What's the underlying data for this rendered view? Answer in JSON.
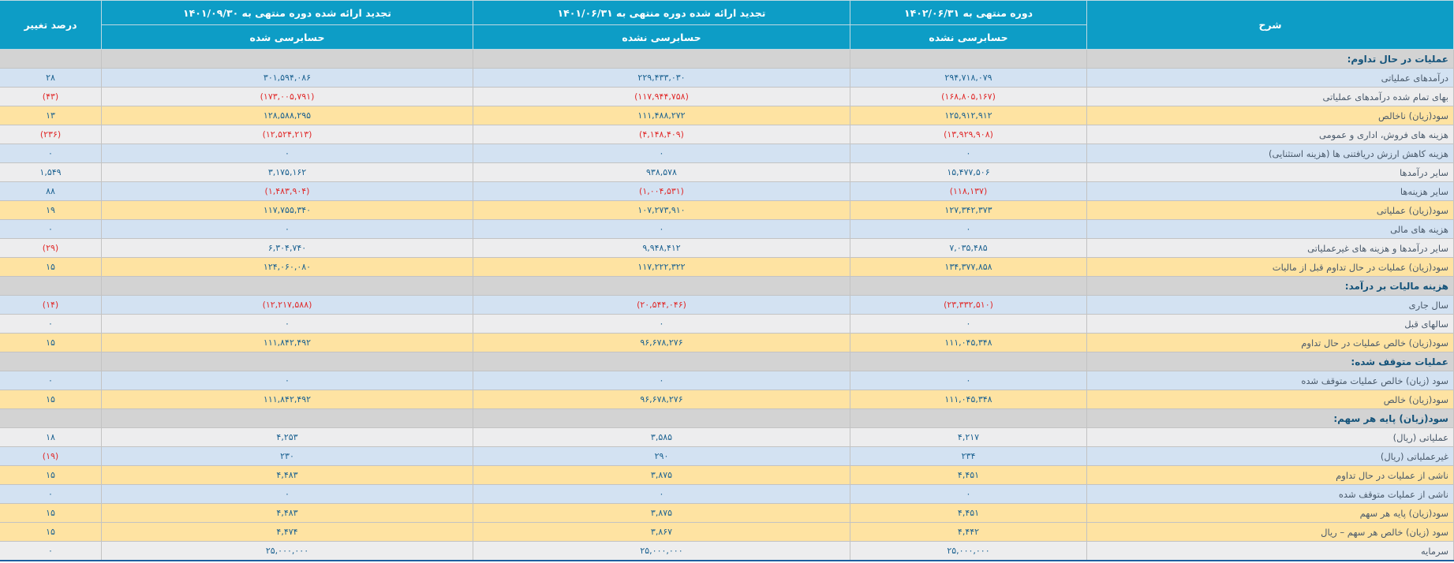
{
  "colors": {
    "header_bg": "#0d9dc6",
    "section_row_bg": "#d3d3d3",
    "row_blue_bg": "#d3e2f2",
    "row_plain_bg": "#ededee",
    "row_yellow_bg": "#fee3a2",
    "number_text": "#1c6291",
    "negative_text": "#e02b2b",
    "label_text": "#4a5a6b",
    "section_text": "#14537a",
    "bottom_border": "#1d5fa0"
  },
  "table": {
    "headers": {
      "description": "شرح",
      "period1": {
        "title": "دوره منتهی به ۱۴۰۲/۰۶/۳۱",
        "status": "حسابرسی نشده"
      },
      "period2": {
        "title": "تجدید ارائه شده دوره منتهی به ۱۴۰۱/۰۶/۳۱",
        "status": "حسابرسی نشده"
      },
      "period3": {
        "title": "تجدید ارائه شده دوره منتهی به ۱۴۰۱/۰۹/۳۰",
        "status": "حسابرسی شده"
      },
      "change": "درصد تغییر"
    },
    "rows": [
      {
        "type": "section",
        "style": "section",
        "label": "عملیات در حال تداوم:",
        "v1": "",
        "v2": "",
        "v3": "",
        "pct": ""
      },
      {
        "type": "data",
        "style": "blue",
        "label": "درآمدهای عملیاتی",
        "v1": "۲۹۴,۷۱۸,۰۷۹",
        "v2": "۲۲۹,۴۳۳,۰۳۰",
        "v3": "۳۰۱,۵۹۴,۰۸۶",
        "pct": "۲۸"
      },
      {
        "type": "data",
        "style": "plain",
        "label": "بهای تمام شده درآمدهای عملیاتی",
        "v1": "(۱۶۸,۸۰۵,۱۶۷)",
        "v2": "(۱۱۷,۹۴۴,۷۵۸)",
        "v3": "(۱۷۳,۰۰۵,۷۹۱)",
        "pct": "(۴۳)"
      },
      {
        "type": "data",
        "style": "yellow",
        "label": "سود(زیان) ناخالص",
        "v1": "۱۲۵,۹۱۲,۹۱۲",
        "v2": "۱۱۱,۴۸۸,۲۷۲",
        "v3": "۱۲۸,۵۸۸,۲۹۵",
        "pct": "۱۳"
      },
      {
        "type": "data",
        "style": "plain",
        "label": "هزینه های فروش، اداری و عمومی",
        "v1": "(۱۳,۹۲۹,۹۰۸)",
        "v2": "(۴,۱۴۸,۴۰۹)",
        "v3": "(۱۲,۵۲۴,۲۱۳)",
        "pct": "(۲۳۶)"
      },
      {
        "type": "data",
        "style": "blue",
        "label": "هزینه کاهش ارزش دریافتنی ها (هزینه استثنایی)",
        "v1": "۰",
        "v2": "۰",
        "v3": "۰",
        "pct": "۰"
      },
      {
        "type": "data",
        "style": "plain",
        "label": "سایر درآمدها",
        "v1": "۱۵,۴۷۷,۵۰۶",
        "v2": "۹۳۸,۵۷۸",
        "v3": "۳,۱۷۵,۱۶۲",
        "pct": "۱,۵۴۹"
      },
      {
        "type": "data",
        "style": "blue",
        "label": "سایر هزینه‌ها",
        "v1": "(۱۱۸,۱۳۷)",
        "v2": "(۱,۰۰۴,۵۳۱)",
        "v3": "(۱,۴۸۳,۹۰۴)",
        "pct": "۸۸"
      },
      {
        "type": "data",
        "style": "yellow",
        "label": "سود(زیان) عملیاتی",
        "v1": "۱۲۷,۳۴۲,۳۷۳",
        "v2": "۱۰۷,۲۷۳,۹۱۰",
        "v3": "۱۱۷,۷۵۵,۳۴۰",
        "pct": "۱۹"
      },
      {
        "type": "data",
        "style": "blue",
        "label": "هزینه های مالی",
        "v1": "۰",
        "v2": "۰",
        "v3": "۰",
        "pct": "۰"
      },
      {
        "type": "data",
        "style": "plain",
        "label": "سایر درآمدها و هزینه های غیرعملیاتی",
        "v1": "۷,۰۳۵,۴۸۵",
        "v2": "۹,۹۴۸,۴۱۲",
        "v3": "۶,۳۰۴,۷۴۰",
        "pct": "(۲۹)"
      },
      {
        "type": "data",
        "style": "yellow",
        "label": "سود(زیان) عملیات در حال تداوم قبل از مالیات",
        "v1": "۱۳۴,۳۷۷,۸۵۸",
        "v2": "۱۱۷,۲۲۲,۳۲۲",
        "v3": "۱۲۴,۰۶۰,۰۸۰",
        "pct": "۱۵"
      },
      {
        "type": "section",
        "style": "section",
        "label": "هزینه مالیات بر درآمد:",
        "v1": "",
        "v2": "",
        "v3": "",
        "pct": ""
      },
      {
        "type": "data",
        "style": "blue",
        "label": "سال جاری",
        "v1": "(۲۳,۳۳۲,۵۱۰)",
        "v2": "(۲۰,۵۴۴,۰۴۶)",
        "v3": "(۱۲,۲۱۷,۵۸۸)",
        "pct": "(۱۴)"
      },
      {
        "type": "data",
        "style": "plain",
        "label": "سالهای قبل",
        "v1": "۰",
        "v2": "۰",
        "v3": "۰",
        "pct": "۰"
      },
      {
        "type": "data",
        "style": "yellow",
        "label": "سود(زیان) خالص عملیات در حال تداوم",
        "v1": "۱۱۱,۰۴۵,۳۴۸",
        "v2": "۹۶,۶۷۸,۲۷۶",
        "v3": "۱۱۱,۸۴۲,۴۹۲",
        "pct": "۱۵"
      },
      {
        "type": "section",
        "style": "section",
        "label": "عملیات متوقف شده:",
        "v1": "",
        "v2": "",
        "v3": "",
        "pct": ""
      },
      {
        "type": "data",
        "style": "blue",
        "label": "سود (زیان) خالص عملیات متوقف شده",
        "v1": "۰",
        "v2": "۰",
        "v3": "۰",
        "pct": "۰"
      },
      {
        "type": "data",
        "style": "yellow",
        "label": "سود(زیان) خالص",
        "v1": "۱۱۱,۰۴۵,۳۴۸",
        "v2": "۹۶,۶۷۸,۲۷۶",
        "v3": "۱۱۱,۸۴۲,۴۹۲",
        "pct": "۱۵"
      },
      {
        "type": "section",
        "style": "section",
        "label": "سود(زیان) پایه هر سهم:",
        "v1": "",
        "v2": "",
        "v3": "",
        "pct": ""
      },
      {
        "type": "data",
        "style": "plain",
        "label": "عملیاتی (ریال)",
        "v1": "۴,۲۱۷",
        "v2": "۳,۵۸۵",
        "v3": "۴,۲۵۳",
        "pct": "۱۸"
      },
      {
        "type": "data",
        "style": "blue",
        "label": "غیرعملیاتی (ریال)",
        "v1": "۲۳۴",
        "v2": "۲۹۰",
        "v3": "۲۳۰",
        "pct": "(۱۹)"
      },
      {
        "type": "data",
        "style": "yellow",
        "label": "ناشی از عملیات در حال تداوم",
        "v1": "۴,۴۵۱",
        "v2": "۳,۸۷۵",
        "v3": "۴,۴۸۳",
        "pct": "۱۵"
      },
      {
        "type": "data",
        "style": "blue",
        "label": "ناشی از عملیات متوقف شده",
        "v1": "۰",
        "v2": "۰",
        "v3": "۰",
        "pct": "۰"
      },
      {
        "type": "data",
        "style": "yellow",
        "label": "سود(زیان) پایه هر سهم",
        "v1": "۴,۴۵۱",
        "v2": "۳,۸۷۵",
        "v3": "۴,۴۸۳",
        "pct": "۱۵"
      },
      {
        "type": "data",
        "style": "yellow",
        "label": "سود (زیان) خالص هر سهم – ریال",
        "v1": "۴,۴۴۲",
        "v2": "۳,۸۶۷",
        "v3": "۴,۴۷۴",
        "pct": "۱۵"
      },
      {
        "type": "data",
        "style": "plain",
        "label": "سرمایه",
        "v1": "۲۵,۰۰۰,۰۰۰",
        "v2": "۲۵,۰۰۰,۰۰۰",
        "v3": "۲۵,۰۰۰,۰۰۰",
        "pct": "۰"
      }
    ]
  }
}
